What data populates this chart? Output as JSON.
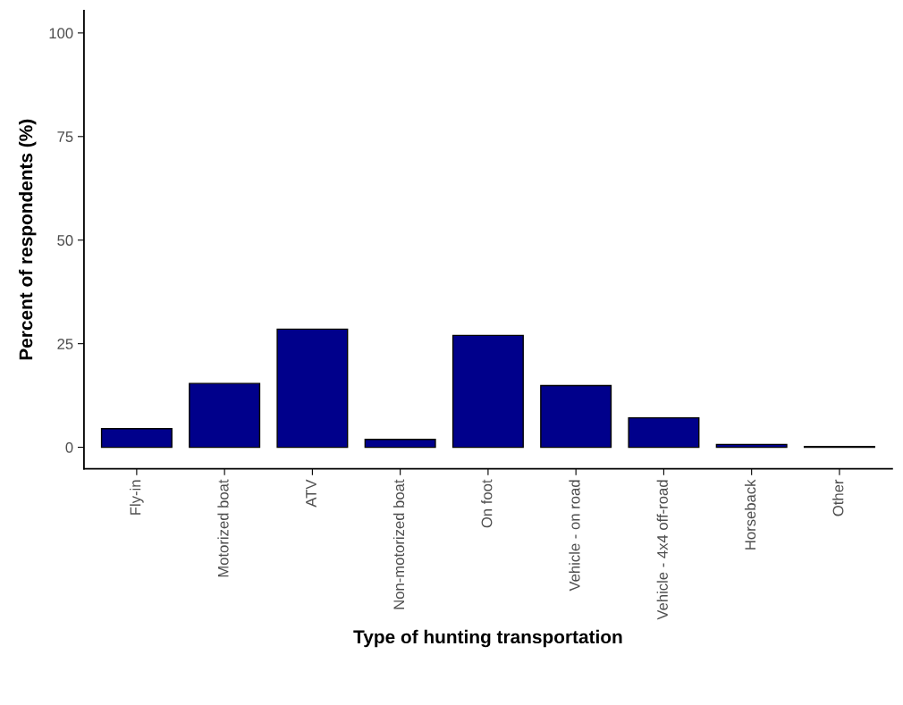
{
  "chart_data": {
    "type": "bar",
    "xlabel": "Type of hunting transportation",
    "ylabel": "Percent of respondents (%)",
    "categories": [
      "Fly-in",
      "Motorized boat",
      "ATV",
      "Non-motorized boat",
      "On foot",
      "Vehicle - on road",
      "Vehicle - 4x4 off-road",
      "Horseback",
      "Other"
    ],
    "values": [
      4.5,
      15.4,
      28.5,
      1.9,
      27.0,
      14.9,
      7.1,
      0.7,
      0.2
    ],
    "color": "#00008b",
    "ylim": [
      -5.2,
      105.4
    ],
    "yticks": [
      0,
      25,
      50,
      75,
      100
    ],
    "grid": false
  }
}
